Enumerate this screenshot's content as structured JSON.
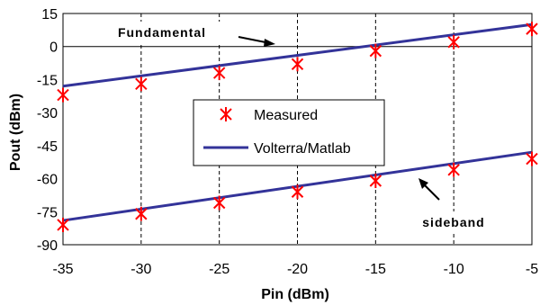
{
  "chart_data": {
    "type": "line",
    "title": "",
    "xlabel": "Pin (dBm)",
    "ylabel": "Pout (dBm)",
    "xlim": [
      -35,
      -5
    ],
    "ylim": [
      -90,
      15
    ],
    "x_ticks": [
      "-35",
      "-30",
      "-25",
      "-20",
      "-15",
      "-10",
      "-5"
    ],
    "y_ticks": [
      "15",
      "0",
      "-15",
      "-30",
      "-45",
      "-60",
      "-75",
      "-90"
    ],
    "grid": {
      "vertical": true,
      "horizontal": false,
      "style": "dashed"
    },
    "legend": {
      "placement": "center",
      "entries": [
        {
          "label": "Measured",
          "marker": "star",
          "color": "#ff0000"
        },
        {
          "label": "Volterra/Matlab",
          "marker": "line",
          "color": "#333399"
        }
      ]
    },
    "series": [
      {
        "name": "Measured",
        "group": "fundamental",
        "kind": "markers",
        "color": "#ff0000",
        "x": [
          -35,
          -30,
          -25,
          -20,
          -15,
          -10,
          -5
        ],
        "y": [
          -22,
          -17,
          -12,
          -8,
          -2,
          2,
          8
        ]
      },
      {
        "name": "Measured",
        "group": "sideband",
        "kind": "markers",
        "color": "#ff0000",
        "x": [
          -35,
          -30,
          -25,
          -20,
          -15,
          -10,
          -5
        ],
        "y": [
          -81,
          -76,
          -71,
          -66,
          -61,
          -56,
          -51
        ]
      },
      {
        "name": "Volterra/Matlab",
        "group": "fundamental",
        "kind": "line",
        "color": "#333399",
        "x": [
          -35,
          -5
        ],
        "y": [
          -18,
          10
        ]
      },
      {
        "name": "Volterra/Matlab",
        "group": "sideband",
        "kind": "line",
        "color": "#333399",
        "x": [
          -35,
          -5
        ],
        "y": [
          -79,
          -48
        ]
      }
    ],
    "annotations": [
      {
        "text": "Fundamental",
        "arrow_to": [
          -17,
          1
        ]
      },
      {
        "text": "sideband",
        "arrow_to": [
          -15,
          -58
        ]
      }
    ]
  }
}
